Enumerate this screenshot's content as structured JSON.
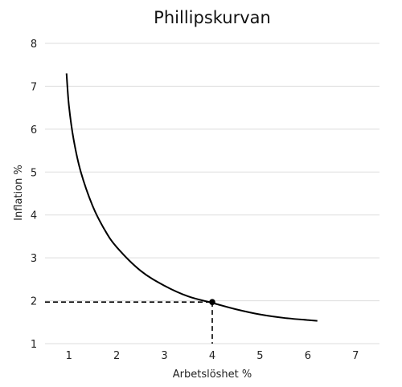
{
  "chart_data": {
    "type": "line",
    "title": "Phillipskurvan",
    "xlabel": "Arbetslöshet %",
    "ylabel": "Inflation %",
    "xlim": [
      0.5,
      7.5
    ],
    "ylim": [
      1,
      8
    ],
    "x_ticks": [
      1,
      2,
      3,
      4,
      5,
      6,
      7
    ],
    "y_ticks": [
      1,
      2,
      3,
      4,
      5,
      6,
      7,
      8
    ],
    "grid": "horizontal",
    "colors": {
      "curve": "#000000",
      "grid": "#dddddd"
    },
    "series": [
      {
        "x": [
          0.95,
          1.0,
          1.1,
          1.25,
          1.5,
          1.75,
          2.0,
          2.5,
          3.0,
          3.5,
          4.0,
          4.5,
          5.0,
          5.5,
          6.0,
          6.2
        ],
        "values": [
          7.3,
          6.55,
          5.75,
          5.0,
          4.2,
          3.65,
          3.25,
          2.7,
          2.35,
          2.1,
          1.95,
          1.8,
          1.68,
          1.6,
          1.55,
          1.53
        ]
      }
    ],
    "highlight_point": {
      "x": 4.0,
      "y": 1.97
    }
  }
}
